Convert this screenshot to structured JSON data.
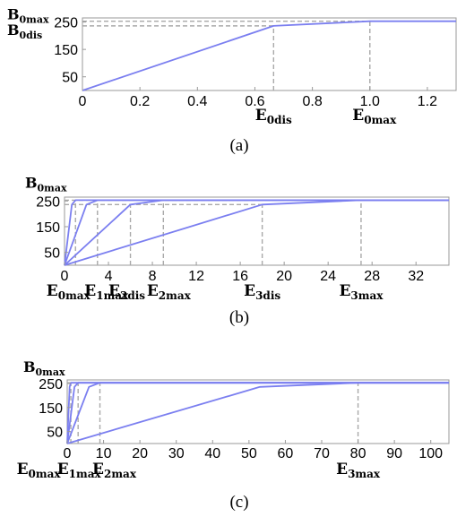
{
  "chart_data": [
    {
      "panel_caption": "(a)",
      "type": "line",
      "x_ticks": [
        "0",
        "0.2",
        "0.4",
        "0.6",
        "0.8",
        "1.0",
        "1.2"
      ],
      "y_ticks": [
        "50",
        "150",
        "250"
      ],
      "xlim": [
        0,
        1.3
      ],
      "ylim": [
        0,
        265
      ],
      "grid": false,
      "curves": [
        {
          "points": [
            [
              0,
              0
            ],
            [
              0.665,
              236
            ],
            [
              1.0,
              253
            ],
            [
              1.3,
              253
            ]
          ]
        }
      ],
      "dashed_h": [
        {
          "y": 253,
          "x0": 0,
          "x1": 1.3
        },
        {
          "y": 236,
          "x0": 0,
          "x1": 0.665
        }
      ],
      "dashed_v": [
        {
          "x": 0.665,
          "y0": 0,
          "y1": 236
        },
        {
          "x": 1.0,
          "y0": 0,
          "y1": 253
        }
      ],
      "axis_annotations": {
        "y": [
          {
            "base": "B",
            "sub": "0max",
            "value": 253
          },
          {
            "base": "B",
            "sub": "0dis",
            "value": 236
          }
        ],
        "x": [
          {
            "base": "E",
            "sub": "0dis",
            "value": 0.665
          },
          {
            "base": "E",
            "sub": "0max",
            "value": 1.0
          }
        ]
      }
    },
    {
      "panel_caption": "(b)",
      "type": "line",
      "x_ticks": [
        "0",
        "4",
        "8",
        "12",
        "16",
        "20",
        "24",
        "28",
        "32"
      ],
      "y_ticks": [
        "50",
        "150",
        "250"
      ],
      "xlim": [
        0,
        35
      ],
      "ylim": [
        0,
        265
      ],
      "grid": false,
      "curves": [
        {
          "points": [
            [
              0,
              0
            ],
            [
              0.67,
              236
            ],
            [
              1.0,
              253
            ],
            [
              35,
              253
            ]
          ]
        },
        {
          "points": [
            [
              0,
              0
            ],
            [
              2.0,
              236
            ],
            [
              3.0,
              253
            ],
            [
              35,
              253
            ]
          ]
        },
        {
          "points": [
            [
              0,
              0
            ],
            [
              6.0,
              236
            ],
            [
              9.0,
              253
            ],
            [
              35,
              253
            ]
          ]
        },
        {
          "points": [
            [
              0,
              0
            ],
            [
              18.0,
              236
            ],
            [
              27.0,
              253
            ],
            [
              35,
              253
            ]
          ]
        }
      ],
      "dashed_h": [
        {
          "y": 253,
          "x0": 0,
          "x1": 35
        },
        {
          "y": 236,
          "x0": 0,
          "x1": 18.0
        }
      ],
      "dashed_v": [
        {
          "x": 1.0,
          "y0": 0,
          "y1": 253
        },
        {
          "x": 3.0,
          "y0": 0,
          "y1": 253
        },
        {
          "x": 6.0,
          "y0": 0,
          "y1": 236
        },
        {
          "x": 9.0,
          "y0": 0,
          "y1": 253
        },
        {
          "x": 18.0,
          "y0": 0,
          "y1": 236
        },
        {
          "x": 27.0,
          "y0": 0,
          "y1": 253
        }
      ],
      "axis_annotations": {
        "y": [
          {
            "base": "B",
            "sub": "0max",
            "value": 253
          }
        ],
        "x": [
          {
            "base": "E",
            "sub": "0max",
            "value": 1.0
          },
          {
            "base": "E",
            "sub": "1max",
            "value": 3.0
          },
          {
            "base": "E",
            "sub": "2dis",
            "value": 6.0
          },
          {
            "base": "E",
            "sub": "2max",
            "value": 9.0
          },
          {
            "base": "E",
            "sub": "3dis",
            "value": 18.0
          },
          {
            "base": "E",
            "sub": "3max",
            "value": 27.0
          }
        ]
      }
    },
    {
      "panel_caption": "(c)",
      "type": "line",
      "x_ticks": [
        "0",
        "10",
        "20",
        "30",
        "40",
        "50",
        "60",
        "70",
        "80",
        "90",
        "100"
      ],
      "y_ticks": [
        "50",
        "150",
        "250"
      ],
      "xlim": [
        0,
        105
      ],
      "ylim": [
        0,
        265
      ],
      "grid": false,
      "curves": [
        {
          "points": [
            [
              0,
              0
            ],
            [
              0.67,
              236
            ],
            [
              1.0,
              253
            ],
            [
              105,
              253
            ]
          ]
        },
        {
          "points": [
            [
              0,
              0
            ],
            [
              2.0,
              236
            ],
            [
              3.0,
              253
            ],
            [
              105,
              253
            ]
          ]
        },
        {
          "points": [
            [
              0,
              0
            ],
            [
              6.0,
              236
            ],
            [
              9.0,
              253
            ],
            [
              105,
              253
            ]
          ]
        },
        {
          "points": [
            [
              0,
              0
            ],
            [
              53.0,
              236
            ],
            [
              80.0,
              253
            ],
            [
              105,
              253
            ]
          ]
        }
      ],
      "dashed_h": [
        {
          "y": 253,
          "x0": 0,
          "x1": 105
        }
      ],
      "dashed_v": [
        {
          "x": 1.0,
          "y0": 0,
          "y1": 253
        },
        {
          "x": 3.0,
          "y0": 0,
          "y1": 253
        },
        {
          "x": 9.0,
          "y0": 0,
          "y1": 253
        },
        {
          "x": 80.0,
          "y0": 0,
          "y1": 253
        }
      ],
      "axis_annotations": {
        "y": [
          {
            "base": "B",
            "sub": "0max",
            "value": 253
          }
        ],
        "x": [
          {
            "base": "E",
            "sub": "0max",
            "value": 1.0
          },
          {
            "base": "E",
            "sub": "1max",
            "value": 3.0
          },
          {
            "base": "E",
            "sub": "2max",
            "value": 9.0
          },
          {
            "base": "E",
            "sub": "3max",
            "value": 80.0
          }
        ]
      }
    }
  ],
  "colors": {
    "curve": "#7b7ff0",
    "dashed": "#a9a9a9",
    "axis": "#999999"
  }
}
